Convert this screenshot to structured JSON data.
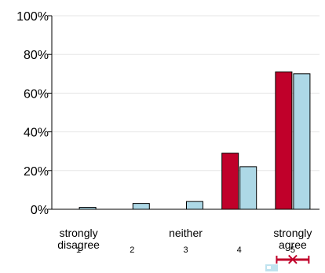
{
  "chart_data": {
    "type": "bar",
    "title": "",
    "xlabel": "",
    "ylabel": "",
    "ylim": [
      0,
      100
    ],
    "yticks": [
      "0%",
      "20%",
      "40%",
      "60%",
      "80%",
      "100%"
    ],
    "grid": true,
    "categories": [
      "1",
      "2",
      "3",
      "4",
      "5"
    ],
    "category_text": [
      "strongly disagree",
      "",
      "neither",
      "",
      "strongly agree"
    ],
    "series": [
      {
        "color": "#c0002a",
        "values": [
          0,
          0,
          0,
          29,
          71
        ]
      },
      {
        "color": "#add8e6",
        "values": [
          1,
          3,
          4,
          22,
          70
        ]
      }
    ],
    "error_marker": {
      "category_index": 4,
      "low": 0.7,
      "high": 1.3,
      "color": "#c0002a",
      "glyph": "✕"
    },
    "legend_icon": "bed-icon"
  }
}
